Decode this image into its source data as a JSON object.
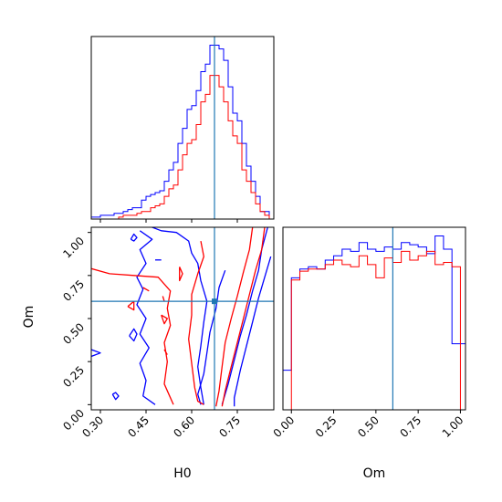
{
  "chart_data": {
    "type": "corner",
    "truth": {
      "H0": 0.675,
      "Om": 0.6
    },
    "colors": {
      "series_a": "#0000ff",
      "series_b": "#ff0000",
      "truth": "#1f77b4"
    },
    "series": [
      {
        "color": "#0000ff"
      },
      {
        "color": "#ff0000"
      }
    ],
    "panels": [
      {
        "id": "hist_H0",
        "type": "histogram",
        "xlim": [
          0.27,
          0.87
        ],
        "y_tick_labels": false,
        "bins": [
          0.27,
          0.285,
          0.3,
          0.315,
          0.33,
          0.345,
          0.36,
          0.375,
          0.39,
          0.405,
          0.42,
          0.435,
          0.45,
          0.465,
          0.48,
          0.495,
          0.51,
          0.525,
          0.54,
          0.555,
          0.57,
          0.585,
          0.6,
          0.615,
          0.63,
          0.645,
          0.66,
          0.675,
          0.69,
          0.705,
          0.72,
          0.735,
          0.75,
          0.765,
          0.78,
          0.795,
          0.81,
          0.825,
          0.84,
          0.855,
          0.87
        ],
        "series_counts": [
          [
            0.5,
            0.5,
            1,
            1,
            1,
            1.5,
            1.5,
            2,
            2.5,
            3,
            3,
            5,
            6,
            6.5,
            7,
            7.5,
            10,
            13,
            15,
            20,
            24,
            29,
            30,
            34,
            39,
            41,
            46,
            46,
            45,
            42,
            35,
            28,
            26,
            20,
            14,
            10,
            6,
            2,
            2,
            0
          ],
          [
            0,
            0,
            0,
            0,
            0,
            0,
            0.5,
            1,
            1,
            1,
            1.5,
            2,
            2,
            3,
            3.5,
            4,
            6,
            8,
            9,
            13,
            17,
            20,
            21,
            25,
            31,
            33,
            38,
            38,
            35,
            31,
            26,
            22,
            20,
            13,
            10,
            7,
            4,
            2,
            1,
            0
          ]
        ]
      },
      {
        "id": "contour_H0_Om",
        "type": "contour",
        "xlim": [
          0.27,
          0.87
        ],
        "ylim": [
          -0.03,
          1.03
        ],
        "xticks": [
          0.3,
          0.45,
          0.6,
          0.75
        ],
        "xtick_labels": [
          "0.30",
          "0.45",
          "0.60",
          "0.75"
        ],
        "yticks": [
          0.0,
          0.25,
          0.5,
          0.75,
          1.0
        ],
        "ytick_labels": [
          "0.00",
          "0.25",
          "0.50",
          "0.75",
          "1.00"
        ],
        "xlabel": "H0",
        "ylabel": "Om",
        "series_contours": [
          [
            [
              [
                0.47,
                1.03
              ],
              [
                0.5,
                1.01
              ],
              [
                0.55,
                1.0
              ],
              [
                0.59,
                0.95
              ],
              [
                0.6,
                0.88
              ],
              [
                0.62,
                0.82
              ],
              [
                0.63,
                0.72
              ],
              [
                0.65,
                0.6
              ],
              [
                0.64,
                0.48
              ],
              [
                0.63,
                0.34
              ],
              [
                0.62,
                0.22
              ],
              [
                0.63,
                0.1
              ],
              [
                0.64,
                0.0
              ]
            ],
            [
              [
                0.43,
                1.01
              ],
              [
                0.47,
                0.96
              ],
              [
                0.43,
                0.9
              ],
              [
                0.45,
                0.82
              ],
              [
                0.42,
                0.74
              ],
              [
                0.44,
                0.67
              ],
              [
                0.42,
                0.58
              ],
              [
                0.45,
                0.5
              ],
              [
                0.43,
                0.41
              ],
              [
                0.46,
                0.33
              ],
              [
                0.43,
                0.24
              ],
              [
                0.45,
                0.14
              ],
              [
                0.44,
                0.05
              ],
              [
                0.48,
                0.0
              ]
            ],
            [
              [
                0.85,
                1.03
              ],
              [
                0.83,
                0.9
              ],
              [
                0.82,
                0.78
              ],
              [
                0.8,
                0.66
              ],
              [
                0.78,
                0.52
              ],
              [
                0.76,
                0.4
              ],
              [
                0.74,
                0.26
              ],
              [
                0.72,
                0.12
              ],
              [
                0.7,
                0.0
              ]
            ],
            [
              [
                0.86,
                0.86
              ],
              [
                0.84,
                0.74
              ],
              [
                0.82,
                0.62
              ],
              [
                0.8,
                0.48
              ],
              [
                0.78,
                0.34
              ],
              [
                0.76,
                0.2
              ],
              [
                0.74,
                0.04
              ],
              [
                0.74,
                -0.01
              ]
            ],
            [
              [
                0.71,
                0.78
              ],
              [
                0.69,
                0.68
              ],
              [
                0.68,
                0.56
              ],
              [
                0.66,
                0.42
              ],
              [
                0.65,
                0.3
              ],
              [
                0.64,
                0.18
              ],
              [
                0.62,
                0.06
              ],
              [
                0.63,
                0.0
              ]
            ],
            [
              [
                0.4,
                0.96
              ],
              [
                0.41,
                0.95
              ],
              [
                0.42,
                0.97
              ],
              [
                0.41,
                0.99
              ],
              [
                0.4,
                0.96
              ]
            ],
            [
              [
                0.27,
                0.32
              ],
              [
                0.3,
                0.3
              ],
              [
                0.27,
                0.28
              ]
            ],
            [
              [
                0.34,
                0.06
              ],
              [
                0.35,
                0.03
              ],
              [
                0.36,
                0.05
              ],
              [
                0.35,
                0.07
              ],
              [
                0.34,
                0.06
              ]
            ],
            [
              [
                0.395,
                0.4
              ],
              [
                0.41,
                0.37
              ],
              [
                0.42,
                0.41
              ],
              [
                0.41,
                0.44
              ],
              [
                0.395,
                0.4
              ]
            ],
            [
              [
                0.48,
                0.84
              ],
              [
                0.5,
                0.84
              ]
            ]
          ],
          [
            [
              [
                0.27,
                0.79
              ],
              [
                0.33,
                0.76
              ],
              [
                0.41,
                0.75
              ],
              [
                0.49,
                0.74
              ],
              [
                0.53,
                0.66
              ],
              [
                0.52,
                0.56
              ],
              [
                0.53,
                0.46
              ],
              [
                0.51,
                0.36
              ],
              [
                0.52,
                0.25
              ],
              [
                0.51,
                0.12
              ],
              [
                0.53,
                0.04
              ],
              [
                0.54,
                0.0
              ]
            ],
            [
              [
                0.8,
                1.03
              ],
              [
                0.79,
                0.9
              ],
              [
                0.77,
                0.77
              ],
              [
                0.75,
                0.63
              ],
              [
                0.73,
                0.5
              ],
              [
                0.71,
                0.36
              ],
              [
                0.7,
                0.22
              ],
              [
                0.69,
                0.08
              ],
              [
                0.68,
                -0.01
              ]
            ],
            [
              [
                0.84,
                1.03
              ],
              [
                0.83,
                0.9
              ],
              [
                0.81,
                0.78
              ],
              [
                0.79,
                0.64
              ],
              [
                0.77,
                0.5
              ],
              [
                0.75,
                0.36
              ],
              [
                0.73,
                0.22
              ],
              [
                0.71,
                0.08
              ],
              [
                0.7,
                -0.01
              ]
            ],
            [
              [
                0.63,
                0.95
              ],
              [
                0.64,
                0.86
              ],
              [
                0.62,
                0.76
              ],
              [
                0.6,
                0.64
              ],
              [
                0.6,
                0.52
              ],
              [
                0.59,
                0.38
              ],
              [
                0.6,
                0.24
              ],
              [
                0.61,
                0.1
              ],
              [
                0.62,
                0.02
              ],
              [
                0.64,
                0.0
              ]
            ],
            [
              [
                0.56,
                0.8
              ],
              [
                0.57,
                0.76
              ],
              [
                0.56,
                0.72
              ],
              [
                0.56,
                0.8
              ]
            ],
            [
              [
                0.5,
                0.52
              ],
              [
                0.51,
                0.47
              ],
              [
                0.52,
                0.5
              ],
              [
                0.5,
                0.52
              ]
            ],
            [
              [
                0.39,
                0.57
              ],
              [
                0.41,
                0.55
              ],
              [
                0.41,
                0.6
              ],
              [
                0.39,
                0.57
              ]
            ],
            [
              [
                0.505,
                0.63
              ],
              [
                0.51,
                0.6
              ]
            ],
            [
              [
                0.51,
                0.32
              ],
              [
                0.52,
                0.29
              ]
            ],
            [
              [
                0.44,
                0.68
              ],
              [
                0.46,
                0.66
              ]
            ]
          ]
        ]
      },
      {
        "id": "hist_Om",
        "type": "histogram",
        "xlim": [
          -0.05,
          1.03
        ],
        "xticks": [
          0.0,
          0.25,
          0.5,
          0.75,
          1.0
        ],
        "xtick_labels": [
          "0.00",
          "0.25",
          "0.50",
          "0.75",
          "1.00"
        ],
        "xlabel": "Om",
        "y_tick_labels": false,
        "bins": [
          -0.05,
          0.0,
          0.05,
          0.1,
          0.15,
          0.2,
          0.25,
          0.3,
          0.35,
          0.4,
          0.45,
          0.5,
          0.55,
          0.6,
          0.65,
          0.7,
          0.75,
          0.8,
          0.85,
          0.9,
          0.95,
          1.0,
          1.03
        ],
        "series_counts": [
          [
            18,
            60,
            64,
            65,
            64,
            68,
            70,
            73,
            72,
            76,
            73,
            72,
            74,
            73,
            76,
            75,
            74,
            71,
            79,
            73,
            30,
            30
          ],
          [
            0,
            59,
            63,
            64,
            64,
            66,
            68,
            66,
            65,
            70,
            66,
            60,
            69,
            67,
            72,
            68,
            70,
            72,
            66,
            67,
            65,
            0
          ]
        ]
      }
    ]
  }
}
